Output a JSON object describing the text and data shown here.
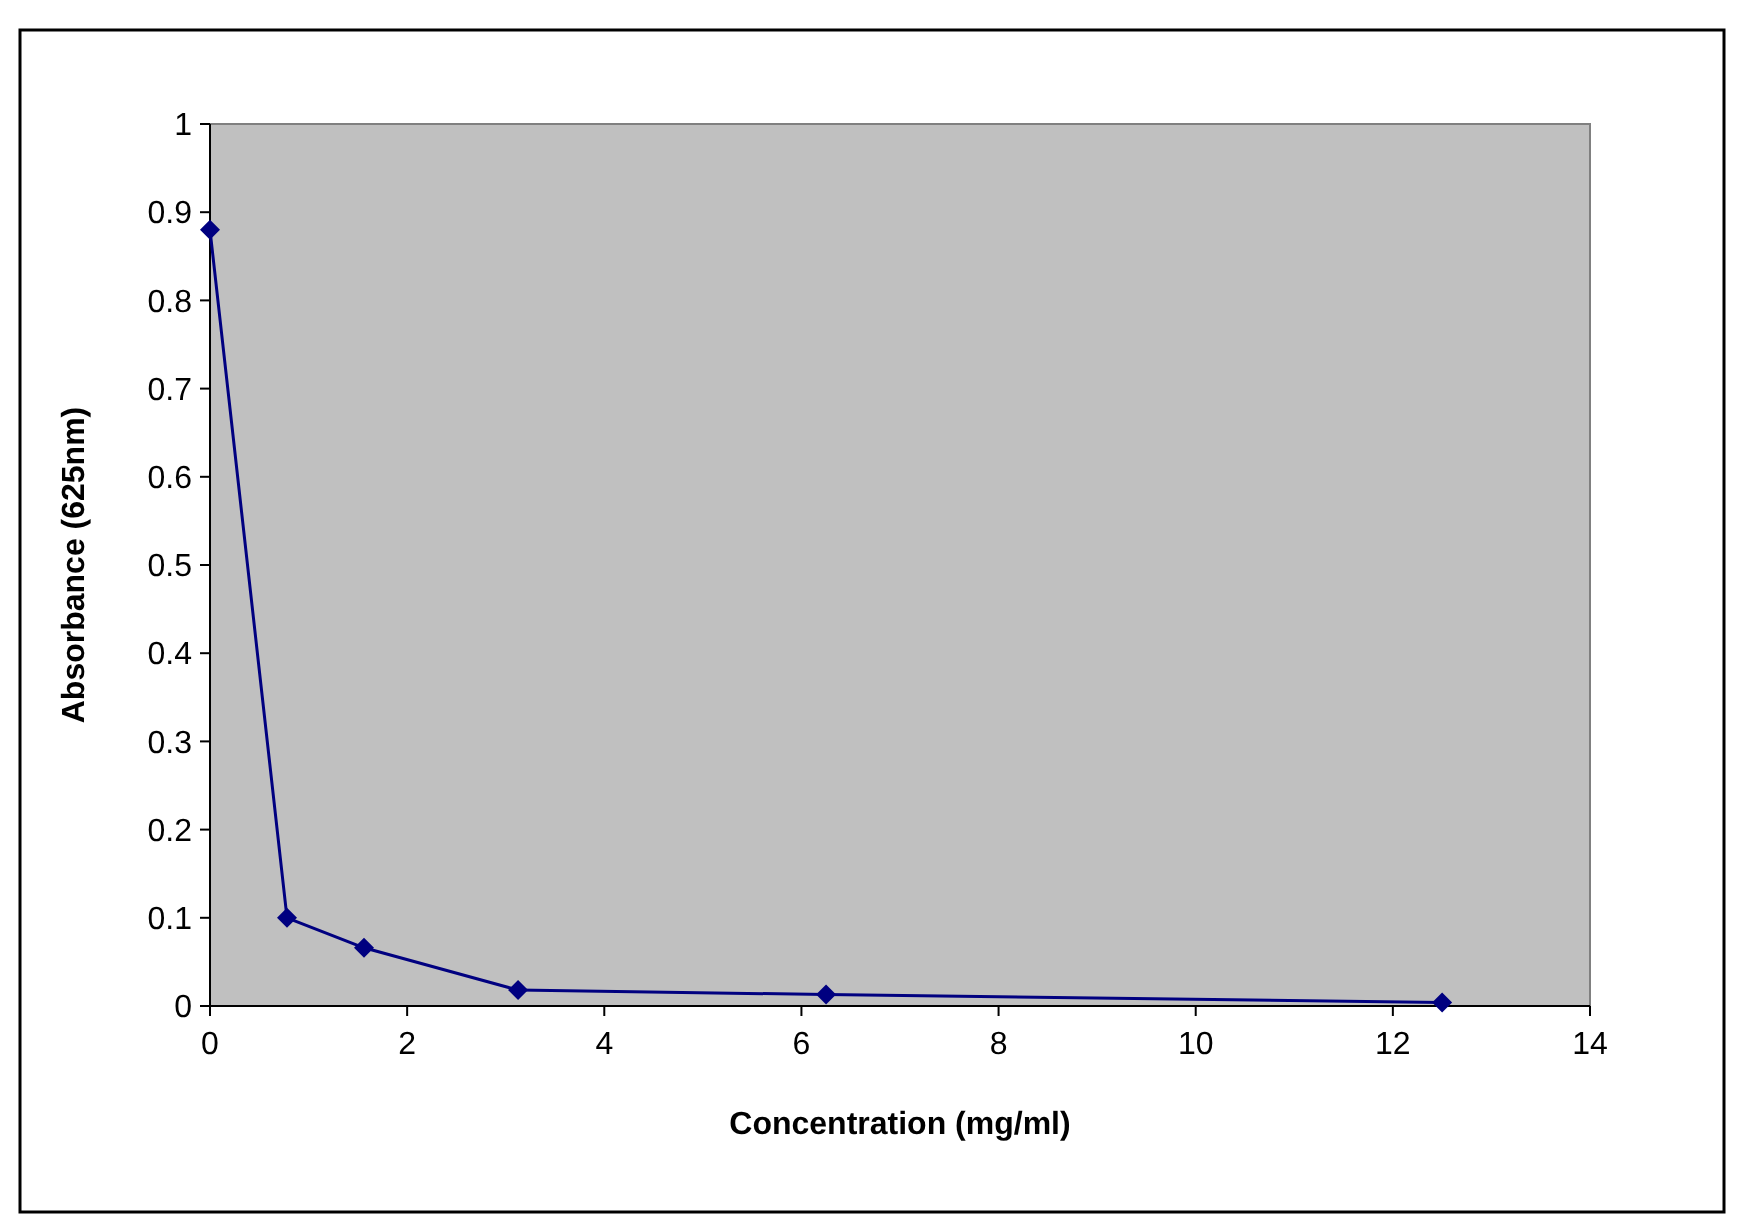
{
  "chart_data": {
    "type": "line",
    "xlabel": "Concentration (mg/ml)",
    "ylabel": "Absorbance (625nm)",
    "x": [
      0,
      0.78125,
      1.5625,
      3.125,
      6.25,
      12.5
    ],
    "series": [
      {
        "color": "#000080",
        "values": [
          0.88,
          0.1,
          0.066,
          0.018,
          0.013,
          0.004
        ]
      }
    ],
    "xlim": [
      0,
      14
    ],
    "xticks": [
      0,
      2,
      4,
      6,
      8,
      10,
      12,
      14
    ],
    "ylim": [
      0,
      1
    ],
    "yticks": [
      0,
      0.1,
      0.2,
      0.3,
      0.4,
      0.5,
      0.6,
      0.7,
      0.8,
      0.9,
      1
    ],
    "grid": false,
    "marker": "diamond",
    "line_style": "solid"
  }
}
